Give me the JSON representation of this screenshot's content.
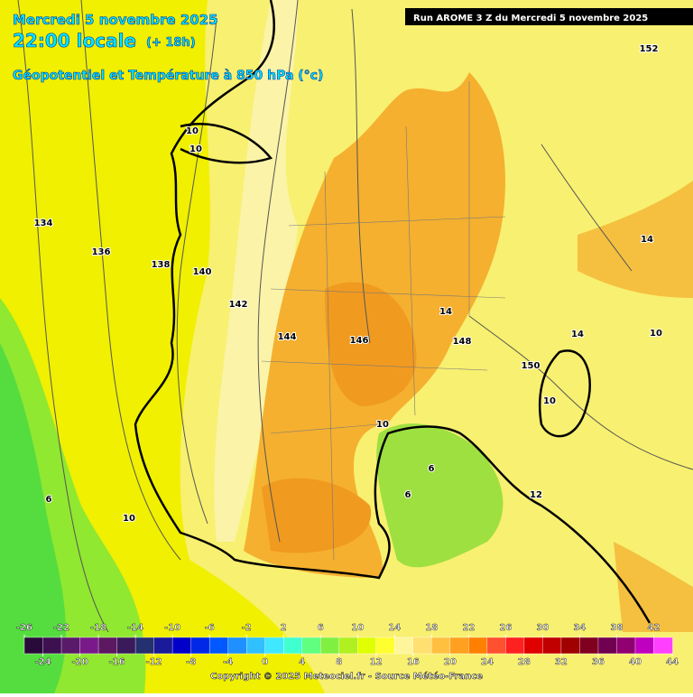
{
  "header": {
    "date": "Mercredi 5 novembre 2025",
    "time": "22:00 locale",
    "lead": "(+ 18h)",
    "parameter": "Géopotentiel et Température à 850 hPa (°c)",
    "run": "Run AROME 3 Z du Mercredi 5 novembre 2025"
  },
  "map": {
    "contour_labels": [
      "10",
      "10",
      "134",
      "136",
      "138",
      "140",
      "142",
      "144",
      "146",
      "148",
      "150",
      "152",
      "14",
      "14",
      "14",
      "10",
      "10",
      "10",
      "6",
      "6",
      "12",
      "6",
      "10"
    ]
  },
  "colorbar": {
    "top_ticks": [
      -26,
      -22,
      -18,
      -14,
      -10,
      -6,
      -2,
      2,
      6,
      10,
      14,
      18,
      22,
      26,
      30,
      34,
      38,
      42
    ],
    "bottom_ticks": [
      -24,
      -20,
      -16,
      -12,
      -8,
      -4,
      0,
      4,
      8,
      12,
      16,
      20,
      24,
      28,
      32,
      36,
      40,
      44
    ],
    "colors": [
      "#2a0a3a",
      "#3d1050",
      "#5a1a6a",
      "#7a1a8a",
      "#5c1860",
      "#3a1a5a",
      "#25306e",
      "#1a1a9a",
      "#0000c8",
      "#0028e6",
      "#0058ff",
      "#1e90ff",
      "#30c0ff",
      "#40e8ff",
      "#40ffd0",
      "#60ff80",
      "#80f040",
      "#b0f020",
      "#e0ff00",
      "#ffff30",
      "#fff59a",
      "#ffe070",
      "#ffc040",
      "#ffa020",
      "#ff8000",
      "#ff5030",
      "#ff2020",
      "#e00000",
      "#c00000",
      "#a00000",
      "#800020",
      "#700050",
      "#900070",
      "#c000c0",
      "#ff40ff"
    ]
  },
  "footer": {
    "copyright": "Copyright © 2025 Meteociel.fr - Source Météo-France"
  }
}
